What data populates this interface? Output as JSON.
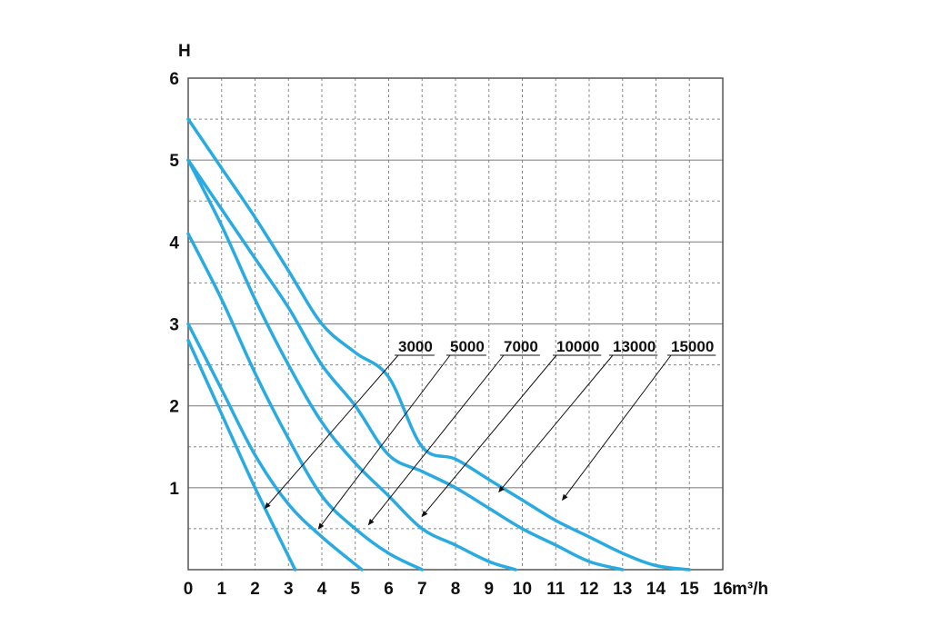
{
  "chart_data": {
    "type": "line",
    "title": "",
    "xlabel": "m³/h",
    "ylabel": "H",
    "xlim": [
      0,
      16
    ],
    "ylim": [
      0,
      6
    ],
    "x_ticks": [
      "0",
      "1",
      "2",
      "3",
      "4",
      "5",
      "6",
      "7",
      "8",
      "9",
      "10",
      "11",
      "12",
      "13",
      "14",
      "15",
      "16"
    ],
    "y_ticks": [
      "1",
      "2",
      "3",
      "4",
      "5",
      "6"
    ],
    "grid": true,
    "colors": {
      "line": "#29abe2",
      "grid": "#888888",
      "frame": "#555555",
      "text": "#111111"
    },
    "series": [
      {
        "name": "3000",
        "points": [
          [
            0,
            2.8
          ],
          [
            1,
            1.9
          ],
          [
            2,
            1.0
          ],
          [
            3.2,
            0
          ]
        ]
      },
      {
        "name": "5000",
        "points": [
          [
            0,
            3.0
          ],
          [
            1,
            2.2
          ],
          [
            2,
            1.4
          ],
          [
            3,
            0.8
          ],
          [
            4,
            0.4
          ],
          [
            5.2,
            0
          ]
        ]
      },
      {
        "name": "7000",
        "points": [
          [
            0,
            4.1
          ],
          [
            1,
            3.3
          ],
          [
            2,
            2.4
          ],
          [
            3,
            1.6
          ],
          [
            4,
            0.9
          ],
          [
            5,
            0.5
          ],
          [
            6,
            0.2
          ],
          [
            7,
            0
          ]
        ]
      },
      {
        "name": "10000",
        "points": [
          [
            0,
            5.0
          ],
          [
            1,
            4.2
          ],
          [
            2,
            3.3
          ],
          [
            3,
            2.5
          ],
          [
            4,
            1.8
          ],
          [
            5,
            1.3
          ],
          [
            6,
            0.9
          ],
          [
            7,
            0.5
          ],
          [
            8,
            0.3
          ],
          [
            9,
            0.1
          ],
          [
            9.8,
            0
          ]
        ]
      },
      {
        "name": "13000",
        "points": [
          [
            0,
            5.0
          ],
          [
            1,
            4.4
          ],
          [
            2,
            3.8
          ],
          [
            3,
            3.2
          ],
          [
            4,
            2.5
          ],
          [
            5,
            2.0
          ],
          [
            6,
            1.4
          ],
          [
            7,
            1.2
          ],
          [
            8,
            1.0
          ],
          [
            9,
            0.75
          ],
          [
            10,
            0.5
          ],
          [
            11,
            0.3
          ],
          [
            12,
            0.1
          ],
          [
            13,
            0
          ]
        ]
      },
      {
        "name": "15000",
        "points": [
          [
            0,
            5.5
          ],
          [
            1,
            4.9
          ],
          [
            2,
            4.3
          ],
          [
            3,
            3.65
          ],
          [
            4,
            3.0
          ],
          [
            5,
            2.65
          ],
          [
            6,
            2.35
          ],
          [
            7,
            1.5
          ],
          [
            8,
            1.35
          ],
          [
            9,
            1.1
          ],
          [
            10,
            0.85
          ],
          [
            11,
            0.6
          ],
          [
            12,
            0.4
          ],
          [
            13,
            0.2
          ],
          [
            14,
            0.05
          ],
          [
            15,
            0
          ]
        ]
      }
    ],
    "annotations": [
      {
        "series": "3000",
        "x": 2.3,
        "y": 0.75
      },
      {
        "series": "5000",
        "x": 3.9,
        "y": 0.5
      },
      {
        "series": "7000",
        "x": 5.4,
        "y": 0.55
      },
      {
        "series": "10000",
        "x": 7.0,
        "y": 0.65
      },
      {
        "series": "13000",
        "x": 9.3,
        "y": 0.95
      },
      {
        "series": "15000",
        "x": 11.2,
        "y": 0.85
      }
    ]
  }
}
